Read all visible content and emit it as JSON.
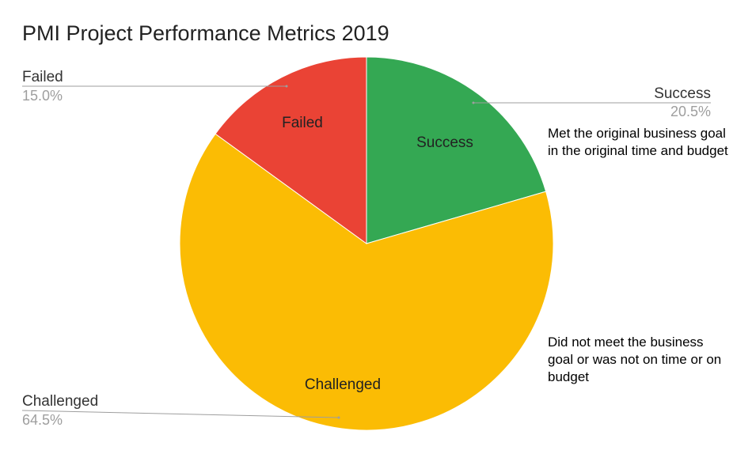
{
  "chart_data": {
    "type": "pie",
    "title": "PMI Project Performance Metrics 2019",
    "slices": [
      {
        "name": "Success",
        "value": 20.5,
        "label": "20.5%",
        "color": "#34a853"
      },
      {
        "name": "Challenged",
        "value": 64.5,
        "label": "64.5%",
        "color": "#fbbc04"
      },
      {
        "name": "Failed",
        "value": 15.0,
        "label": "15.0%",
        "color": "#ea4335"
      }
    ],
    "start_angle": "12 o'clock",
    "direction": "clockwise",
    "legend": "none"
  },
  "annotations": {
    "success_note": "Met the original business goal in the original time and budget",
    "challenged_note": "Did not meet the business goal or was not on time or on budget"
  }
}
